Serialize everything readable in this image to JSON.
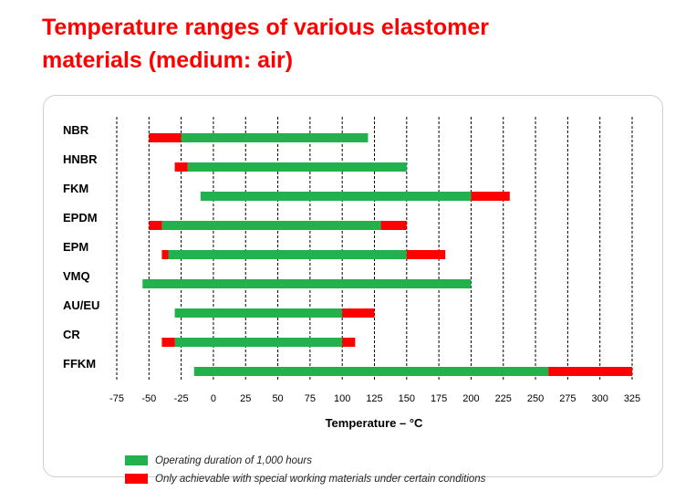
{
  "title_line1": "Temperature ranges of various elastomer",
  "title_line2": "materials (medium: air)",
  "colors": {
    "title": "#ff0000",
    "operating": "#22b14c",
    "special": "#ff0000",
    "grid": "#000000"
  },
  "legend": {
    "operating_label": "Operating duration of 1,000 hours",
    "special_label": "Only achievable with special working materials under certain conditions"
  },
  "chart_data": {
    "type": "bar",
    "orientation": "horizontal",
    "stacked_segments": true,
    "xlabel": "Temperature – °C",
    "xlim": [
      -75,
      325
    ],
    "x_ticks": [
      -75,
      -50,
      -25,
      0,
      25,
      50,
      75,
      100,
      125,
      150,
      175,
      200,
      225,
      250,
      275,
      300,
      325
    ],
    "grid": "vertical dashed",
    "legend_position": "bottom",
    "categories": [
      "NBR",
      "HNBR",
      "FKM",
      "EPDM",
      "EPM",
      "VMQ",
      "AU/EU",
      "CR",
      "FFKM"
    ],
    "series": [
      {
        "name": "Operating duration of 1,000 hours",
        "color": "#22b14c",
        "ranges": [
          [
            -25,
            120
          ],
          [
            -20,
            150
          ],
          [
            -10,
            200
          ],
          [
            -40,
            130
          ],
          [
            -35,
            150
          ],
          [
            -55,
            200
          ],
          [
            -30,
            100
          ],
          [
            -30,
            100
          ],
          [
            -15,
            260
          ]
        ]
      },
      {
        "name": "Only achievable with special working materials under certain conditions",
        "color": "#ff0000",
        "ranges": [
          [
            [
              -50,
              -25
            ]
          ],
          [
            [
              -30,
              -20
            ]
          ],
          [
            [
              200,
              230
            ]
          ],
          [
            [
              -50,
              -40
            ],
            [
              130,
              150
            ]
          ],
          [
            [
              -40,
              -35
            ],
            [
              150,
              180
            ]
          ],
          [],
          [
            [
              100,
              125
            ]
          ],
          [
            [
              -40,
              -30
            ],
            [
              100,
              110
            ]
          ],
          [
            [
              260,
              325
            ]
          ]
        ]
      }
    ]
  }
}
